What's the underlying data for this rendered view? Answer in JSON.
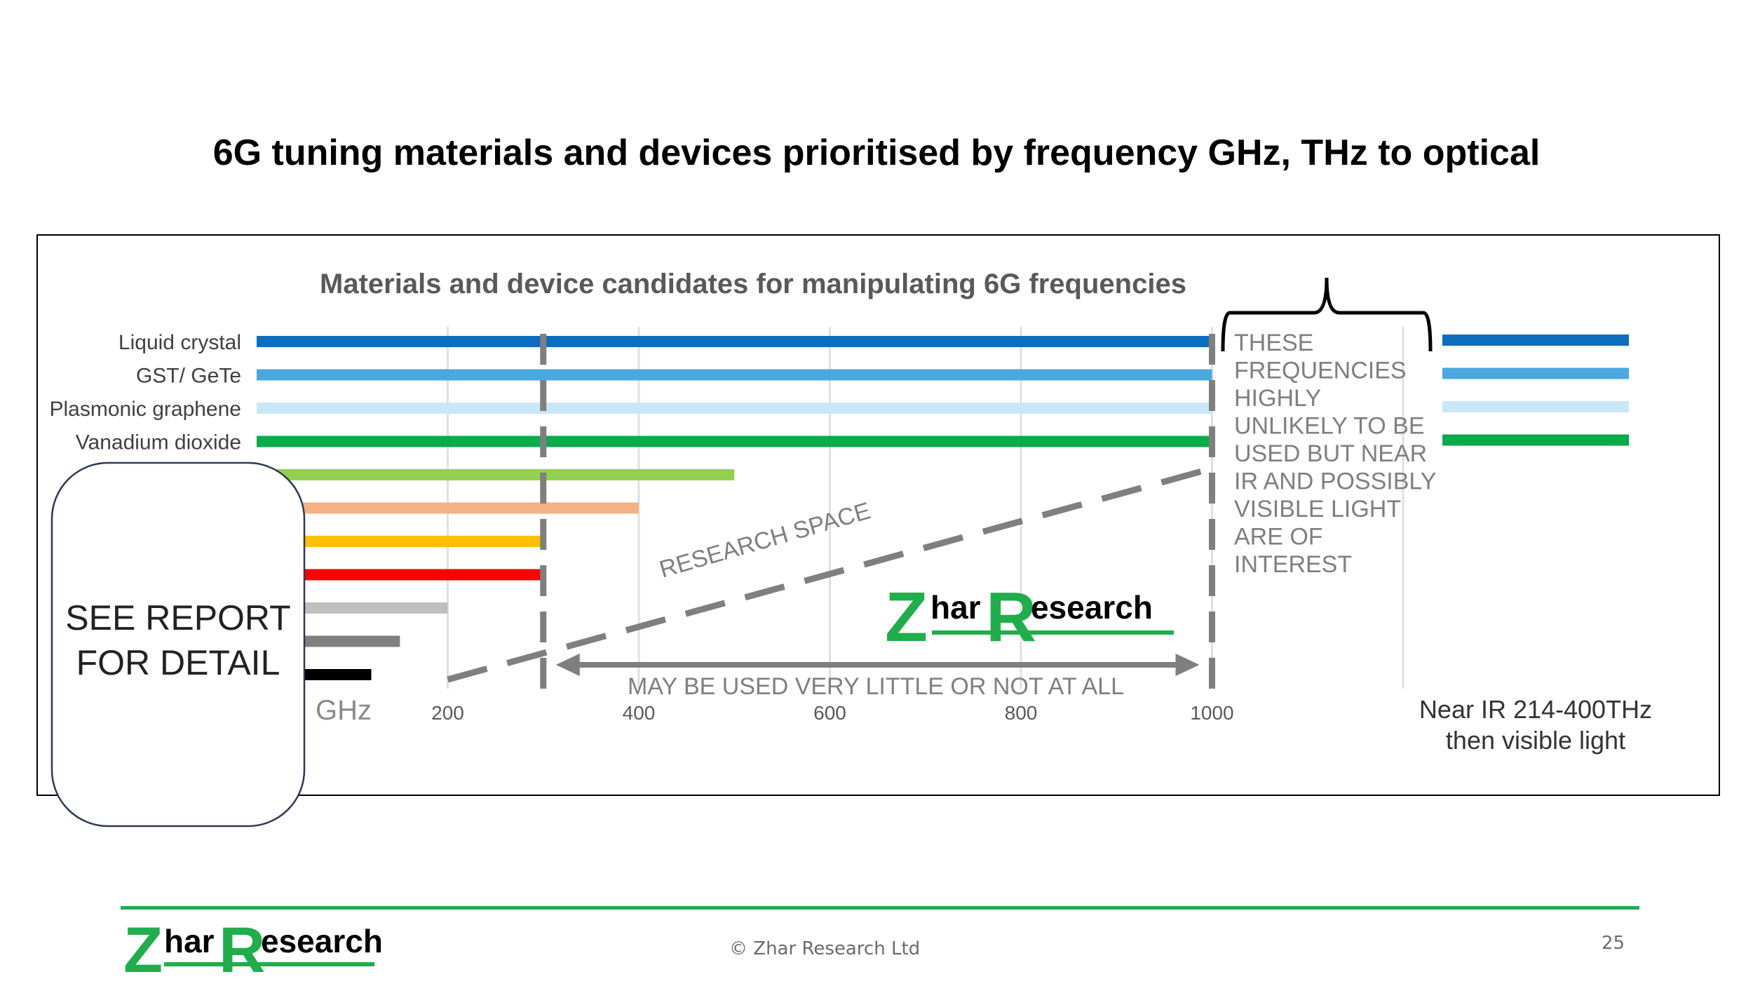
{
  "slide": {
    "title": "6G tuning materials and devices prioritised by frequency GHz, THz to optical",
    "copyright": "© Zhar Research Ltd",
    "page_number": "25"
  },
  "brand": {
    "logo_z": "Z",
    "logo_har": "har",
    "logo_r": "R",
    "logo_esearch": "esearch",
    "green": "#1fae4b"
  },
  "chart_data": {
    "type": "bar",
    "orientation": "horizontal",
    "title": "Materials and device candidates for manipulating 6G frequencies",
    "xlabel": "GHz",
    "xlim": [
      0,
      1200
    ],
    "x_ticks": [
      200,
      400,
      600,
      800,
      1000
    ],
    "grid": true,
    "series": [
      {
        "name": "Liquid crystal",
        "end": 1000,
        "continues_beyond": true,
        "color": "#0a6ebd"
      },
      {
        "name": "GST/ GeTe",
        "end": 1000,
        "continues_beyond": true,
        "color": "#4aa8df"
      },
      {
        "name": "Plasmonic graphene",
        "end": 1000,
        "continues_beyond": true,
        "color": "#c9e8f7"
      },
      {
        "name": "Vanadium dioxide",
        "end": 1000,
        "continues_beyond": true,
        "color": "#0aab4a"
      },
      {
        "name": "",
        "end": 500,
        "continues_beyond": false,
        "color": "#92d050"
      },
      {
        "name": "",
        "end": 400,
        "continues_beyond": false,
        "color": "#f4b183"
      },
      {
        "name": "",
        "end": 300,
        "continues_beyond": false,
        "color": "#ffc000"
      },
      {
        "name": "",
        "end": 300,
        "continues_beyond": false,
        "color": "#ff0000"
      },
      {
        "name": "",
        "end": 200,
        "continues_beyond": false,
        "color": "#bfbfbf"
      },
      {
        "name": "",
        "end": 150,
        "continues_beyond": false,
        "color": "#808080"
      },
      {
        "name": "",
        "end": 120,
        "continues_beyond": false,
        "color": "#000000"
      }
    ],
    "marker_lines_ghz": [
      300,
      1000
    ],
    "annotations": {
      "research_space": "RESEARCH SPACE",
      "may_be_used": "MAY BE USED VERY LITTLE OR NOT AT ALL",
      "high_freq_note": [
        "THESE",
        "FREQUENCIES",
        "HIGHLY",
        "UNLIKELY TO BE",
        "USED BUT NEAR",
        "IR AND POSSIBLY",
        "VISIBLE LIGHT",
        "ARE OF",
        "INTEREST"
      ],
      "near_ir": [
        "Near IR 214-400THz",
        "then visible light"
      ],
      "see_report": [
        "SEE REPORT",
        "FOR DETAIL"
      ]
    }
  }
}
